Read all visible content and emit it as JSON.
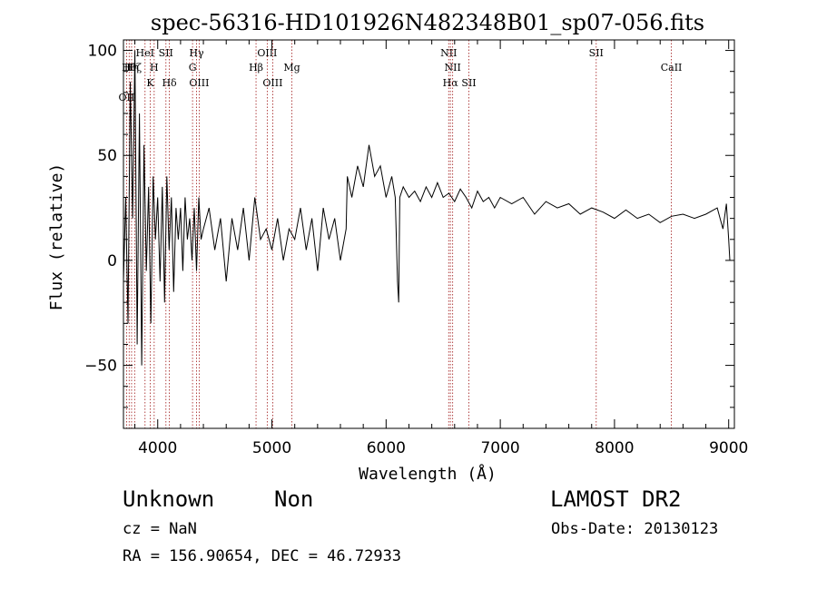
{
  "chart_data": {
    "type": "line",
    "title": "spec-56316-HD101926N482348B01_sp07-056.fits",
    "xlabel": "Wavelength (Å)",
    "ylabel": "Flux (relative)",
    "xlim": [
      3700,
      9050
    ],
    "ylim": [
      -80,
      105
    ],
    "xticks": [
      4000,
      5000,
      6000,
      7000,
      8000,
      9000
    ],
    "yticks": [
      -50,
      0,
      50,
      100
    ],
    "grid": false,
    "legend": "none",
    "line_color": "#000000",
    "marker_color": "#a01818",
    "series": [
      {
        "x": [
          3700,
          3720,
          3740,
          3760,
          3780,
          3800,
          3820,
          3840,
          3860,
          3880,
          3900,
          3920,
          3940,
          3960,
          3980,
          4000,
          4020,
          4040,
          4060,
          4080,
          4100,
          4120,
          4140,
          4160,
          4180,
          4200,
          4220,
          4240,
          4260,
          4280,
          4300,
          4320,
          4340,
          4360,
          4380,
          4400,
          4450,
          4500,
          4550,
          4600,
          4650,
          4700,
          4750,
          4800,
          4850,
          4900,
          4950,
          5000,
          5050,
          5100,
          5150,
          5200,
          5250,
          5300,
          5350,
          5400,
          5450,
          5500,
          5550,
          5600,
          5650,
          5660,
          5700,
          5750,
          5800,
          5850,
          5900,
          5950,
          6000,
          6050,
          6080,
          6100,
          6110,
          6120,
          6150,
          6200,
          6250,
          6300,
          6350,
          6400,
          6450,
          6500,
          6550,
          6600,
          6650,
          6700,
          6750,
          6800,
          6850,
          6900,
          6950,
          7000,
          7100,
          7200,
          7300,
          7400,
          7500,
          7600,
          7700,
          7800,
          7900,
          8000,
          8100,
          8200,
          8300,
          8400,
          8500,
          8600,
          8700,
          8800,
          8900,
          8950,
          8980,
          9000,
          9010
        ],
        "y": [
          -10,
          30,
          -30,
          85,
          20,
          100,
          -40,
          70,
          -50,
          55,
          -5,
          35,
          -30,
          40,
          10,
          30,
          -10,
          35,
          -20,
          40,
          5,
          30,
          -15,
          25,
          10,
          25,
          -5,
          30,
          10,
          20,
          0,
          25,
          -5,
          30,
          10,
          15,
          25,
          5,
          20,
          -10,
          20,
          5,
          25,
          0,
          30,
          10,
          15,
          5,
          20,
          0,
          15,
          10,
          25,
          5,
          20,
          -5,
          25,
          10,
          20,
          0,
          15,
          40,
          30,
          45,
          35,
          55,
          40,
          45,
          30,
          40,
          30,
          -10,
          -20,
          30,
          35,
          30,
          33,
          28,
          35,
          30,
          37,
          30,
          32,
          28,
          34,
          30,
          25,
          33,
          28,
          30,
          25,
          30,
          27,
          30,
          22,
          28,
          25,
          27,
          22,
          25,
          23,
          20,
          24,
          20,
          22,
          18,
          21,
          22,
          20,
          22,
          25,
          15,
          27,
          10,
          0
        ],
        "name": ""
      }
    ],
    "line_markers": [
      {
        "wl": 3727,
        "label": "OII",
        "row": 3
      },
      {
        "wl": 3750,
        "label": "Hθ",
        "row": 1
      },
      {
        "wl": 3771,
        "label": "Hη",
        "row": 1
      },
      {
        "wl": 3798,
        "label": "Hζ",
        "row": 1
      },
      {
        "wl": 3889,
        "label": "HeI",
        "row": 0
      },
      {
        "wl": 3934,
        "label": "K",
        "row": 2
      },
      {
        "wl": 3969,
        "label": "H",
        "row": 1
      },
      {
        "wl": 4072,
        "label": "SII",
        "row": 0
      },
      {
        "wl": 4102,
        "label": "Hδ",
        "row": 2
      },
      {
        "wl": 4305,
        "label": "G",
        "row": 1
      },
      {
        "wl": 4340,
        "label": "Hγ",
        "row": 0
      },
      {
        "wl": 4363,
        "label": "OIII",
        "row": 2
      },
      {
        "wl": 4861,
        "label": "Hβ",
        "row": 1
      },
      {
        "wl": 4959,
        "label": "OIII",
        "row": 0
      },
      {
        "wl": 5007,
        "label": "OIII",
        "row": 2
      },
      {
        "wl": 5175,
        "label": "Mg",
        "row": 1
      },
      {
        "wl": 6548,
        "label": "NII",
        "row": 0
      },
      {
        "wl": 6563,
        "label": "Hα",
        "row": 2
      },
      {
        "wl": 6583,
        "label": "NII",
        "row": 1
      },
      {
        "wl": 6725,
        "label": "SII",
        "row": 2
      },
      {
        "wl": 7840,
        "label": "SII",
        "row": 0
      },
      {
        "wl": 8498,
        "label": "CaII",
        "row": 1
      }
    ]
  },
  "footer": {
    "object": "Unknown",
    "class": "Non",
    "survey": "LAMOST DR2",
    "cz": "cz = NaN",
    "obs_date": "Obs-Date: 20130123",
    "radec": "RA = 156.90654, DEC =  46.72933"
  }
}
